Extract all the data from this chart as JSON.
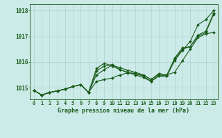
{
  "title": "Graphe pression niveau de la mer (hPa)",
  "bg_color": "#cceae8",
  "plot_bg_color": "#cceae8",
  "line_color": "#1a5c1a",
  "grid_color": "#b0d4d0",
  "text_color": "#1a5c1a",
  "ylim": [
    1014.55,
    1018.25
  ],
  "yticks": [
    1015,
    1016,
    1017,
    1018
  ],
  "xlim": [
    -0.5,
    23.5
  ],
  "xtick_labels": [
    "0",
    "1",
    "2",
    "3",
    "4",
    "5",
    "6",
    "7",
    "8",
    "9",
    "10",
    "11",
    "12",
    "13",
    "14",
    "15",
    "16",
    "17",
    "18",
    "19",
    "20",
    "21",
    "22",
    "23"
  ],
  "series": [
    [
      1014.9,
      1014.72,
      1014.82,
      1014.88,
      1014.95,
      1015.05,
      1015.12,
      1014.82,
      1015.25,
      1015.32,
      1015.38,
      1015.5,
      1015.58,
      1015.55,
      1015.5,
      1015.32,
      1015.55,
      1015.5,
      1015.6,
      1016.05,
      1016.5,
      1016.95,
      1017.1,
      1017.15
    ],
    [
      1014.9,
      1014.72,
      1014.82,
      1014.88,
      1014.95,
      1015.05,
      1015.12,
      1014.82,
      1015.5,
      1015.7,
      1015.88,
      1015.78,
      1015.68,
      1015.6,
      1015.5,
      1015.32,
      1015.55,
      1015.5,
      1016.1,
      1016.5,
      1016.6,
      1017.0,
      1017.15,
      1017.85
    ],
    [
      1014.9,
      1014.72,
      1014.82,
      1014.88,
      1014.95,
      1015.05,
      1015.12,
      1014.82,
      1015.75,
      1015.95,
      1015.85,
      1015.7,
      1015.6,
      1015.55,
      1015.45,
      1015.25,
      1015.5,
      1015.45,
      1016.15,
      1016.55,
      1016.6,
      1017.05,
      1017.2,
      1017.9
    ],
    [
      1014.9,
      1014.72,
      1014.82,
      1014.88,
      1014.95,
      1015.05,
      1015.12,
      1014.82,
      1015.65,
      1015.85,
      1015.9,
      1015.7,
      1015.6,
      1015.5,
      1015.4,
      1015.25,
      1015.45,
      1015.45,
      1016.05,
      1016.45,
      1016.8,
      1017.45,
      1017.65,
      1018.0
    ]
  ]
}
